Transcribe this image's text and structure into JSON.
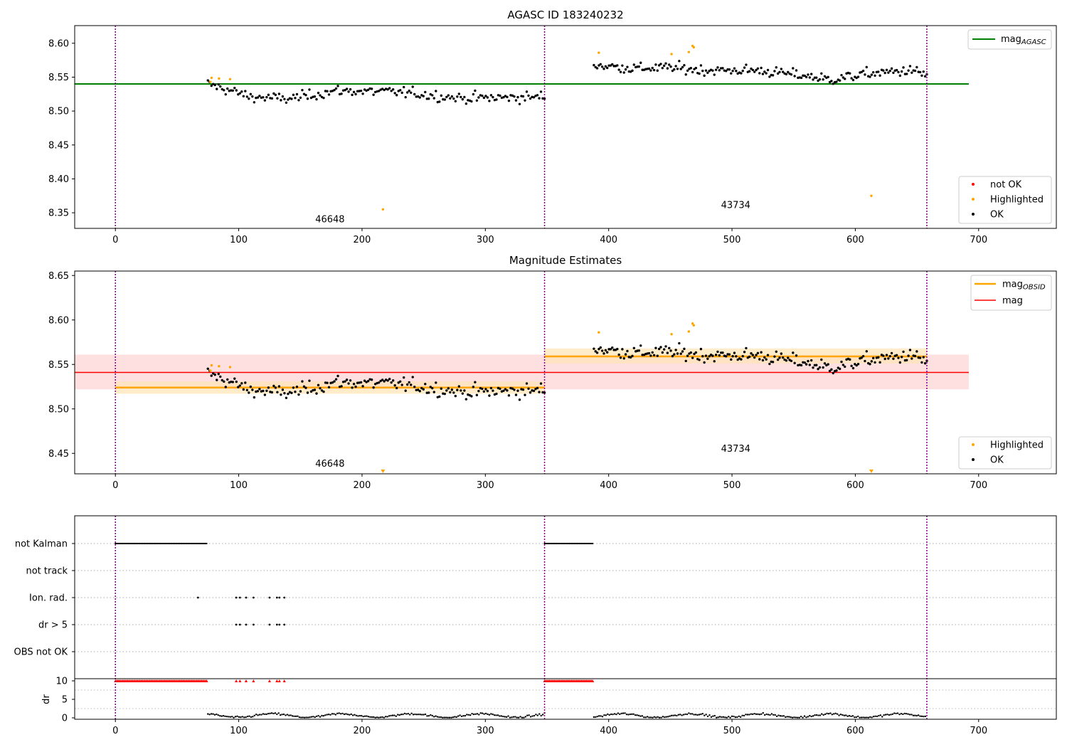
{
  "colors": {
    "ok": "#000000",
    "highlighted": "#ffa500",
    "not_ok": "#ff0000",
    "agasc_line": "#008000",
    "obsid_line": "#ffa500",
    "mag_line": "#ff0000",
    "boundary": "#800080",
    "mag_band": "#ffcccc",
    "obsid_band": "#ffe4b5"
  },
  "chart_data": [
    {
      "type": "scatter",
      "title": "AGASC ID 183240232",
      "xlim": [
        -33,
        763
      ],
      "ylim": [
        8.327,
        8.626
      ],
      "xticks": [
        0,
        100,
        200,
        300,
        400,
        500,
        600,
        700
      ],
      "yticks": [
        8.35,
        8.4,
        8.45,
        8.5,
        8.55,
        8.6
      ],
      "yticklabels": [
        "8.35",
        "8.40",
        "8.45",
        "8.50",
        "8.55",
        "8.60"
      ],
      "boundaries": [
        0,
        348,
        658
      ],
      "obsids": [
        {
          "label": "46648",
          "x": 174,
          "y": 8.336
        },
        {
          "label": "43734",
          "x": 503,
          "y": 8.357
        }
      ],
      "mag_agasc": {
        "value": 8.54,
        "x": [
          -33,
          692
        ]
      },
      "segments": [
        {
          "x0": 75,
          "x1": 348,
          "trend": [
            [
              75,
              8.54
            ],
            [
              110,
              8.521
            ],
            [
              140,
              8.518
            ],
            [
              180,
              8.53
            ],
            [
              230,
              8.528
            ],
            [
              280,
              8.519
            ],
            [
              320,
              8.52
            ],
            [
              348,
              8.521
            ]
          ],
          "n": 190,
          "noise": 0.0055
        },
        {
          "x0": 388,
          "x1": 658,
          "trend": [
            [
              388,
              8.568
            ],
            [
              420,
              8.563
            ],
            [
              450,
              8.564
            ],
            [
              480,
              8.56
            ],
            [
              520,
              8.56
            ],
            [
              560,
              8.552
            ],
            [
              580,
              8.546
            ],
            [
              610,
              8.555
            ],
            [
              645,
              8.56
            ],
            [
              658,
              8.553
            ]
          ],
          "n": 200,
          "noise": 0.0055
        }
      ],
      "highlighted": [
        [
          77,
          8.543
        ],
        [
          78,
          8.549
        ],
        [
          84,
          8.548
        ],
        [
          93,
          8.547
        ],
        [
          217,
          8.355
        ],
        [
          392,
          8.586
        ],
        [
          451,
          8.584
        ],
        [
          465,
          8.587
        ],
        [
          468,
          8.596
        ],
        [
          469,
          8.594
        ],
        [
          613,
          8.375
        ]
      ],
      "legend_lines": [
        {
          "label": "mag",
          "sub": "AGASC"
        }
      ],
      "legend_markers": [
        "not OK",
        "Highlighted",
        "OK"
      ]
    },
    {
      "type": "scatter",
      "title": "Magnitude Estimates",
      "xlim": [
        -33,
        763
      ],
      "ylim": [
        8.427,
        8.655
      ],
      "xticks": [
        0,
        100,
        200,
        300,
        400,
        500,
        600,
        700
      ],
      "yticks": [
        8.45,
        8.5,
        8.55,
        8.6,
        8.65
      ],
      "yticklabels": [
        "8.45",
        "8.50",
        "8.55",
        "8.60",
        "8.65"
      ],
      "boundaries": [
        0,
        348,
        658
      ],
      "obsids": [
        {
          "label": "46648",
          "x": 174,
          "y": 8.435
        },
        {
          "label": "43734",
          "x": 503,
          "y": 8.452
        }
      ],
      "mag": {
        "value": 8.541,
        "band": [
          8.522,
          8.561
        ],
        "x": [
          -33,
          692
        ]
      },
      "mag_obsid": [
        {
          "value": 8.524,
          "band": [
            8.517,
            8.531
          ],
          "x": [
            0,
            348
          ]
        },
        {
          "value": 8.559,
          "band": [
            8.551,
            8.568
          ],
          "x": [
            348,
            658
          ]
        }
      ],
      "highlighted": [
        [
          77,
          8.543
        ],
        [
          78,
          8.549
        ],
        [
          84,
          8.548
        ],
        [
          93,
          8.547
        ],
        [
          392,
          8.586
        ],
        [
          451,
          8.584
        ],
        [
          465,
          8.587
        ],
        [
          468,
          8.596
        ],
        [
          469,
          8.594
        ]
      ],
      "offscale_low": [
        217,
        613
      ],
      "legend_lines": [
        {
          "label": "mag",
          "sub": "OBSID"
        },
        {
          "label": "mag",
          "sub": ""
        }
      ],
      "legend_markers": [
        "Highlighted",
        "OK"
      ]
    },
    {
      "type": "scatter",
      "xlim": [
        -33,
        763
      ],
      "xticks": [
        0,
        100,
        200,
        300,
        400,
        500,
        600,
        700
      ],
      "boundaries": [
        0,
        348,
        658
      ],
      "flag_rows": [
        "not Kalman",
        "not track",
        "Ion. rad.",
        "dr > 5",
        "OBS not OK"
      ],
      "flags": {
        "not Kalman": [
          [
            0,
            74
          ],
          [
            348,
            387
          ]
        ],
        "Ion. rad.": [
          67,
          98,
          101,
          106,
          112,
          125,
          131,
          133,
          137
        ],
        "dr > 5": [
          98,
          101,
          106,
          112,
          125,
          131,
          133,
          137
        ]
      },
      "dr_ylabel": "dr",
      "dr_yticks": [
        0,
        5,
        10
      ],
      "dr_saturated": {
        "value": 10,
        "ranges": [
          [
            0,
            74
          ],
          [
            348,
            387
          ]
        ],
        "points": [
          98,
          101,
          106,
          112,
          125,
          131,
          133,
          137
        ]
      },
      "dr_segments": [
        [
          75,
          348
        ],
        [
          388,
          658
        ]
      ]
    }
  ]
}
